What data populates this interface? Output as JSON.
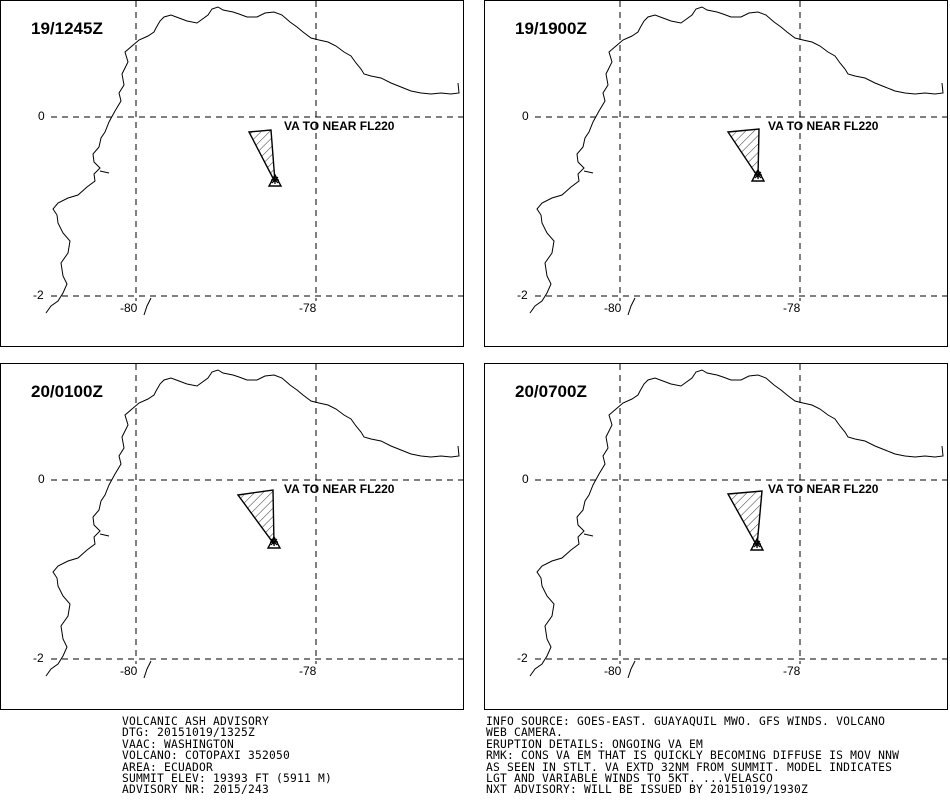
{
  "panels": [
    {
      "time": "19/1245Z",
      "label": "VA TO NEAR FL220",
      "ash_shape": "a"
    },
    {
      "time": "19/1900Z",
      "label": "VA TO NEAR FL220",
      "ash_shape": "b"
    },
    {
      "time": "20/0100Z",
      "label": "VA TO NEAR FL220",
      "ash_shape": "c"
    },
    {
      "time": "20/0700Z",
      "label": "VA TO NEAR FL220",
      "ash_shape": "d"
    }
  ],
  "axes": {
    "lat_labels": [
      "0",
      "-2"
    ],
    "lon_labels": [
      "-80",
      "-78"
    ]
  },
  "advisory_left": [
    "VOLCANIC ASH ADVISORY",
    "DTG: 20151019/1325Z",
    "VAAC: WASHINGTON",
    "VOLCANO: COTOPAXI 352050",
    "AREA: ECUADOR",
    "SUMMIT ELEV: 19393 FT (5911 M)",
    "ADVISORY NR: 2015/243"
  ],
  "advisory_right": [
    "INFO SOURCE: GOES-EAST. GUAYAQUIL MWO. GFS WINDS. VOLCANO",
    "WEB CAMERA.",
    "ERUPTION DETAILS: ONGOING VA EM",
    "RMK: CONS VA EM THAT IS QUICKLY BECOMING DIFFUSE IS MOV NNW",
    "AS SEEN IN STLT. VA EXTD 32NM FROM SUMMIT. MODEL INDICATES",
    "LGT AND VARIABLE WINDS TO 5KT. ...VELASCO",
    "NXT ADVISORY: WILL BE ISSUED BY 20151019/1930Z"
  ]
}
